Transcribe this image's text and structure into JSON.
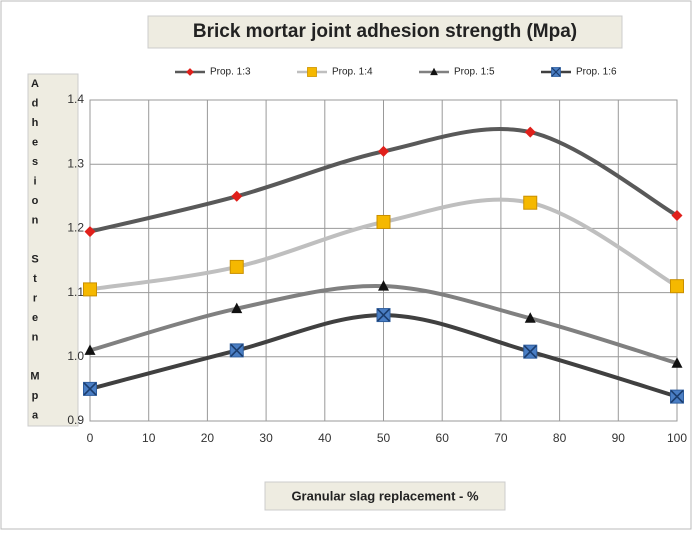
{
  "chart_data": {
    "type": "line",
    "title": "Brick mortar joint adhesion strength (Mpa)",
    "x_label": "Granular slag replacement - %",
    "y_label": "Adhesion Stren Mpa",
    "x": [
      0,
      25,
      50,
      75,
      100
    ],
    "series": [
      {
        "name": "Prop. 1:3",
        "color": "#e0201b",
        "line_color": "#595959",
        "marker": "diamond",
        "values": [
          1.195,
          1.25,
          1.32,
          1.35,
          1.22
        ]
      },
      {
        "name": "Prop. 1:4",
        "color": "#f5b800",
        "line_color": "#bfbfbf",
        "marker": "square",
        "values": [
          1.105,
          1.14,
          1.21,
          1.24,
          1.11
        ]
      },
      {
        "name": "Prop. 1:5",
        "color": "#111111",
        "line_color": "#808080",
        "marker": "triangle",
        "values": [
          1.01,
          1.075,
          1.11,
          1.06,
          0.99
        ]
      },
      {
        "name": "Prop. 1:6",
        "color": "#4a7ec4",
        "line_color": "#404040",
        "marker": "xsquare",
        "values": [
          0.95,
          1.01,
          1.065,
          1.008,
          0.938
        ]
      }
    ],
    "xlim": [
      0,
      100
    ],
    "xticks": [
      0,
      10,
      20,
      30,
      40,
      50,
      60,
      70,
      80,
      90,
      100
    ],
    "ylim": [
      0.9,
      1.4
    ],
    "yticks": [
      0.9,
      {
        "value": 1,
        "label": "1.0"
      },
      1.1,
      1.2,
      1.3,
      1.4
    ],
    "grid": true,
    "legend": "top"
  }
}
